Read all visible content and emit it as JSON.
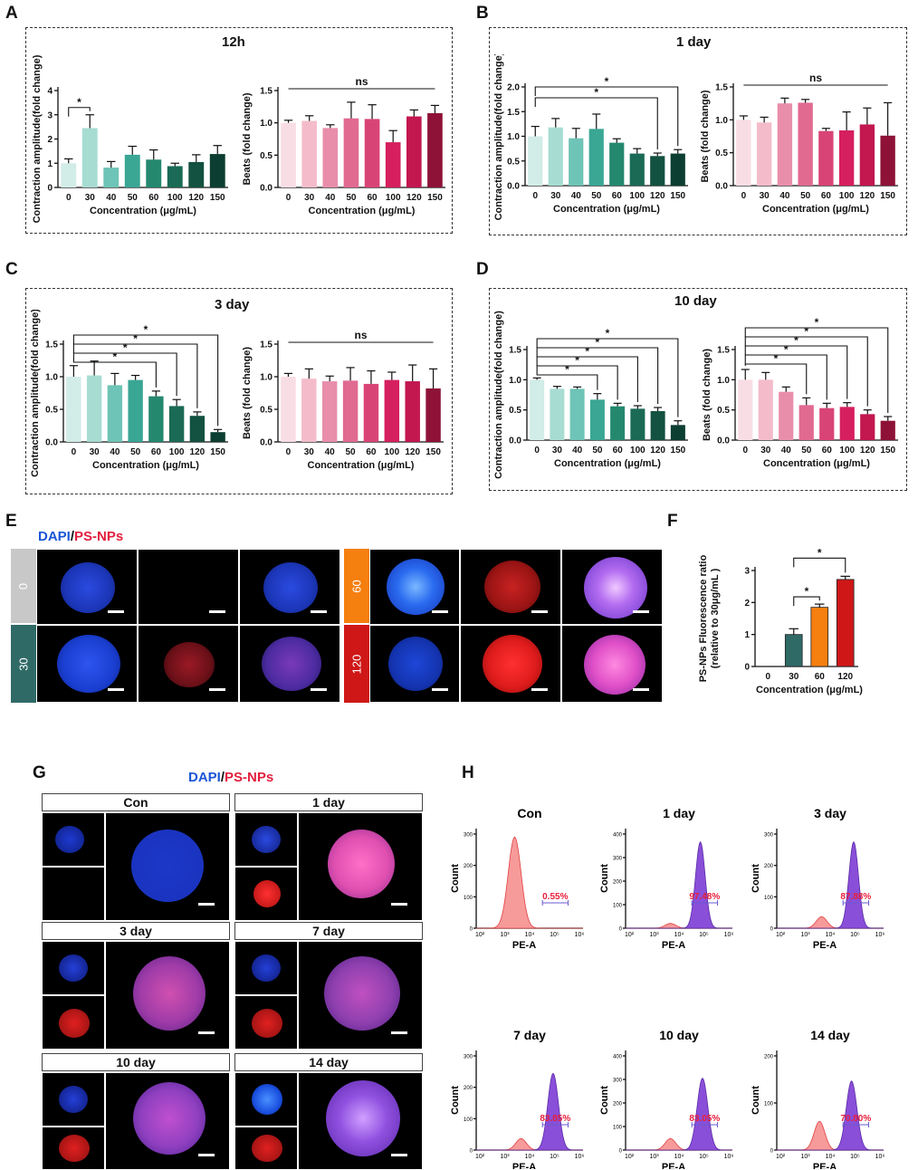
{
  "panel_labels": {
    "A": "A",
    "B": "B",
    "C": "C",
    "D": "D",
    "E": "E",
    "F": "F",
    "G": "G",
    "H": "H"
  },
  "colors": {
    "teal": [
      "#d2ece7",
      "#a7dcd2",
      "#6ec4b6",
      "#3aa694",
      "#24886f",
      "#1a6a55",
      "#135140",
      "#0c3e31"
    ],
    "pink": [
      "#f9dde5",
      "#f4bccb",
      "#e88eab",
      "#e16a91",
      "#d94476",
      "#d61f5f",
      "#c2174f",
      "#8e1238"
    ],
    "dapi": "#1a56d6",
    "psnp": "#e21e3d"
  },
  "chart_data": [
    {
      "id": "A1",
      "type": "bar",
      "title": "12h",
      "categories": [
        "0",
        "30",
        "40",
        "50",
        "60",
        "100",
        "120",
        "150"
      ],
      "values": [
        1.0,
        2.45,
        0.82,
        1.35,
        1.15,
        0.88,
        1.05,
        1.38
      ],
      "errors": [
        0.18,
        0.55,
        0.25,
        0.35,
        0.4,
        0.12,
        0.3,
        0.35
      ],
      "xlabel": "Concentration (μg/mL)",
      "ylabel": "Contraction amplitude(fold change)",
      "ylim": [
        0,
        4
      ],
      "yticks": [
        "0",
        "1",
        "2",
        "3",
        "4"
      ],
      "palette": "teal",
      "significance": [
        {
          "from": 0,
          "to": 1,
          "label": "*"
        }
      ]
    },
    {
      "id": "A2",
      "type": "bar",
      "title": "",
      "categories": [
        "0",
        "30",
        "40",
        "50",
        "60",
        "100",
        "120",
        "150"
      ],
      "values": [
        1.0,
        1.03,
        0.92,
        1.07,
        1.06,
        0.7,
        1.1,
        1.15
      ],
      "errors": [
        0.04,
        0.08,
        0.05,
        0.25,
        0.22,
        0.18,
        0.1,
        0.12
      ],
      "xlabel": "Concentration (μg/mL)",
      "ylabel": "Beats (fold change)",
      "ylim": [
        0,
        1.5
      ],
      "yticks": [
        "0.0",
        "0.5",
        "1.0",
        "1.5"
      ],
      "palette": "pink",
      "ns": "ns"
    },
    {
      "id": "B1",
      "type": "bar",
      "title": "1 day",
      "categories": [
        "0",
        "30",
        "40",
        "50",
        "60",
        "100",
        "120",
        "150"
      ],
      "values": [
        1.0,
        1.18,
        0.96,
        1.15,
        0.87,
        0.65,
        0.6,
        0.65
      ],
      "errors": [
        0.2,
        0.18,
        0.2,
        0.3,
        0.08,
        0.1,
        0.06,
        0.08
      ],
      "xlabel": "Concentration (μg/mL)",
      "ylabel": "Contraction amplitude(fold change)",
      "ylim": [
        0,
        2.0
      ],
      "yticks": [
        "0.0",
        "0.5",
        "1.0",
        "1.5",
        "2.0"
      ],
      "palette": "teal",
      "significance": [
        {
          "from": 0,
          "to": 6,
          "label": "*"
        },
        {
          "from": 0,
          "to": 7,
          "label": "*"
        }
      ]
    },
    {
      "id": "B2",
      "type": "bar",
      "title": "",
      "categories": [
        "0",
        "30",
        "40",
        "50",
        "60",
        "100",
        "120",
        "150"
      ],
      "values": [
        1.0,
        0.96,
        1.25,
        1.26,
        0.83,
        0.84,
        0.93,
        0.76
      ],
      "errors": [
        0.06,
        0.08,
        0.08,
        0.05,
        0.04,
        0.28,
        0.25,
        0.5
      ],
      "xlabel": "Concentration (μg/mL)",
      "ylabel": "Beats (fold change)",
      "ylim": [
        0,
        1.5
      ],
      "yticks": [
        "0.0",
        "0.5",
        "1.0",
        "1.5"
      ],
      "palette": "pink",
      "ns": "ns"
    },
    {
      "id": "C1",
      "type": "bar",
      "title": "3 day",
      "categories": [
        "0",
        "30",
        "40",
        "50",
        "60",
        "100",
        "120",
        "150"
      ],
      "values": [
        1.0,
        1.02,
        0.87,
        0.95,
        0.7,
        0.55,
        0.4,
        0.15
      ],
      "errors": [
        0.17,
        0.22,
        0.18,
        0.07,
        0.08,
        0.1,
        0.06,
        0.04
      ],
      "xlabel": "Concentration (μg/mL)",
      "ylabel": "Contraction amplitude(fold change)",
      "ylim": [
        0,
        1.5
      ],
      "yticks": [
        "0.0",
        "0.5",
        "1.0",
        "1.5"
      ],
      "palette": "teal",
      "significance": [
        {
          "from": 0,
          "to": 4,
          "label": "*"
        },
        {
          "from": 0,
          "to": 5,
          "label": "*"
        },
        {
          "from": 0,
          "to": 6,
          "label": "*"
        },
        {
          "from": 0,
          "to": 7,
          "label": "*"
        }
      ]
    },
    {
      "id": "C2",
      "type": "bar",
      "title": "",
      "categories": [
        "0",
        "30",
        "40",
        "50",
        "60",
        "100",
        "120",
        "150"
      ],
      "values": [
        1.0,
        0.97,
        0.93,
        0.94,
        0.89,
        0.95,
        0.93,
        0.82
      ],
      "errors": [
        0.05,
        0.15,
        0.08,
        0.2,
        0.2,
        0.12,
        0.25,
        0.3
      ],
      "xlabel": "Concentration (μg/mL)",
      "ylabel": "Beats (fold change)",
      "ylim": [
        0,
        1.5
      ],
      "yticks": [
        "0.0",
        "0.5",
        "1.0",
        "1.5"
      ],
      "palette": "pink",
      "ns": "ns"
    },
    {
      "id": "D1",
      "type": "bar",
      "title": "10 day",
      "categories": [
        "0",
        "30",
        "40",
        "50",
        "60",
        "100",
        "120",
        "150"
      ],
      "values": [
        1.0,
        0.85,
        0.85,
        0.67,
        0.56,
        0.52,
        0.48,
        0.25
      ],
      "errors": [
        0.03,
        0.04,
        0.03,
        0.1,
        0.05,
        0.05,
        0.06,
        0.07
      ],
      "xlabel": "Concentration (μg/mL)",
      "ylabel": "Contraction amplitude(fold change)",
      "ylim": [
        0,
        1.5
      ],
      "yticks": [
        "0.0",
        "0.5",
        "1.0",
        "1.5"
      ],
      "palette": "teal",
      "significance": [
        {
          "from": 0,
          "to": 3,
          "label": "*"
        },
        {
          "from": 0,
          "to": 4,
          "label": "*"
        },
        {
          "from": 0,
          "to": 5,
          "label": "*"
        },
        {
          "from": 0,
          "to": 6,
          "label": "*"
        },
        {
          "from": 0,
          "to": 7,
          "label": "*"
        }
      ]
    },
    {
      "id": "D2",
      "type": "bar",
      "title": "",
      "categories": [
        "0",
        "30",
        "40",
        "50",
        "60",
        "100",
        "120",
        "150"
      ],
      "values": [
        1.0,
        1.0,
        0.8,
        0.58,
        0.53,
        0.55,
        0.43,
        0.32
      ],
      "errors": [
        0.17,
        0.12,
        0.08,
        0.12,
        0.08,
        0.07,
        0.07,
        0.07
      ],
      "xlabel": "Concentration (μg/mL)",
      "ylabel": "Beats (fold change)",
      "ylim": [
        0,
        1.5
      ],
      "yticks": [
        "0.0",
        "0.5",
        "1.0",
        "1.5"
      ],
      "palette": "pink",
      "significance": [
        {
          "from": 0,
          "to": 3,
          "label": "*"
        },
        {
          "from": 0,
          "to": 4,
          "label": "*"
        },
        {
          "from": 0,
          "to": 5,
          "label": "*"
        },
        {
          "from": 0,
          "to": 6,
          "label": "*"
        },
        {
          "from": 0,
          "to": 7,
          "label": "*"
        }
      ]
    },
    {
      "id": "F",
      "type": "bar",
      "title": "",
      "categories": [
        "0",
        "30",
        "60",
        "120"
      ],
      "values": [
        0,
        1.0,
        1.85,
        2.72
      ],
      "errors": [
        0,
        0.18,
        0.1,
        0.1
      ],
      "xlabel": "Concentration (μg/mL)",
      "ylabel": "PS-NPs Fluorescence ratio (relative to 30μg/mL)",
      "ylabel_lines": [
        "PS-NPs Fluorescence ratio",
        "(relative to 30μg/mL )"
      ],
      "ylim": [
        0,
        3
      ],
      "yticks": [
        "0",
        "1",
        "2",
        "3"
      ],
      "colors": [
        "#ffffff",
        "#2f6a67",
        "#f57f0f",
        "#cf1717"
      ],
      "significance": [
        {
          "from": 1,
          "to": 2,
          "label": "*"
        },
        {
          "from": 1,
          "to": 3,
          "label": "*"
        }
      ]
    },
    {
      "id": "H",
      "type": "histogram",
      "xlabel": "PE-A",
      "ylabel": "Count",
      "xticks": [
        "10²",
        "10³",
        "10⁴",
        "10⁵",
        "10⁶"
      ],
      "plots": [
        {
          "title": "Con",
          "gate": "0.55%",
          "ymax": 300,
          "yticks": [
            "0",
            "100",
            "200",
            "300"
          ]
        },
        {
          "title": "1 day",
          "gate": "97.48%",
          "ymax": 400,
          "yticks": [
            "0",
            "100",
            "200",
            "300",
            "400"
          ]
        },
        {
          "title": "3 day",
          "gate": "87.88%",
          "ymax": 300,
          "yticks": [
            "0",
            "100",
            "200",
            "300"
          ]
        },
        {
          "title": "7 day",
          "gate": "83.85%",
          "ymax": 300,
          "yticks": [
            "0",
            "100",
            "200",
            "300"
          ]
        },
        {
          "title": "10 day",
          "gate": "83.05%",
          "ymax": 400,
          "yticks": [
            "0",
            "100",
            "200",
            "300",
            "400"
          ]
        },
        {
          "title": "14 day",
          "gate": "70.80%",
          "ymax": 200,
          "yticks": [
            "0",
            "100",
            "200"
          ]
        }
      ]
    }
  ],
  "panelE": {
    "legend_dapi": "DAPI",
    "legend_sep": "/",
    "legend_ps": "PS-NPs",
    "concentrations": [
      "0",
      "30",
      "60",
      "120"
    ]
  },
  "panelG": {
    "legend_dapi": "DAPI",
    "legend_sep": "/",
    "legend_ps": "PS-NPs",
    "headers": [
      "Con",
      "1 day",
      "3 day",
      "7 day",
      "10 day",
      "14 day"
    ]
  }
}
